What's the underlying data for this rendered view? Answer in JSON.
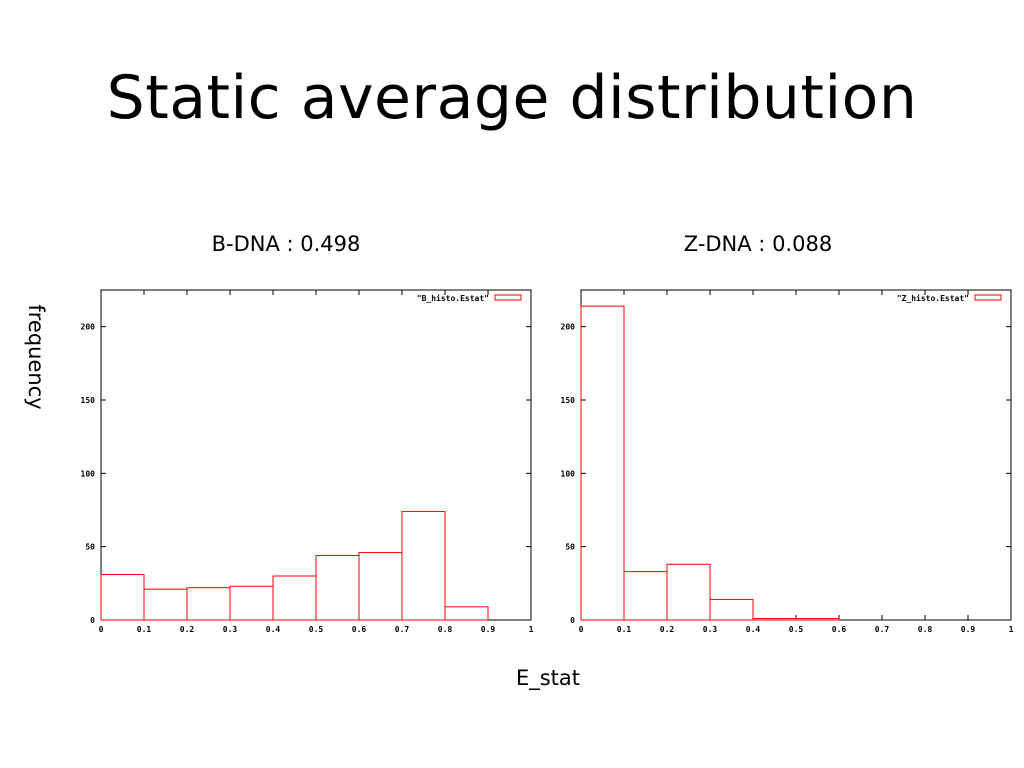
{
  "slide": {
    "title": "Static average distribution",
    "ylabel": "frequency",
    "xlabel": "E_stat"
  },
  "chart_data": [
    {
      "type": "bar",
      "title": "B-DNA : 0.498",
      "legend": "\"B_histo.Estat\"",
      "legend_position": "top-right",
      "color": "#ff0000",
      "xlim": [
        0,
        1
      ],
      "ylim": [
        0,
        225
      ],
      "xticks": [
        "0",
        "0.1",
        "0.2",
        "0.3",
        "0.4",
        "0.5",
        "0.6",
        "0.7",
        "0.8",
        "0.9",
        "1"
      ],
      "yticks": [
        "0",
        "50",
        "100",
        "150",
        "200"
      ],
      "bins": [
        {
          "x0": 0.0,
          "x1": 0.1,
          "value": 31
        },
        {
          "x0": 0.1,
          "x1": 0.2,
          "value": 21
        },
        {
          "x0": 0.2,
          "x1": 0.3,
          "value": 22
        },
        {
          "x0": 0.3,
          "x1": 0.4,
          "value": 23
        },
        {
          "x0": 0.4,
          "x1": 0.5,
          "value": 30
        },
        {
          "x0": 0.5,
          "x1": 0.6,
          "value": 44
        },
        {
          "x0": 0.6,
          "x1": 0.7,
          "value": 46
        },
        {
          "x0": 0.7,
          "x1": 0.8,
          "value": 74
        },
        {
          "x0": 0.8,
          "x1": 0.9,
          "value": 9
        }
      ]
    },
    {
      "type": "bar",
      "title": "Z-DNA : 0.088",
      "legend": "\"Z_histo.Estat\"",
      "legend_position": "top-right",
      "color": "#ff0000",
      "xlim": [
        0,
        1
      ],
      "ylim": [
        0,
        225
      ],
      "xticks": [
        "0",
        "0.1",
        "0.2",
        "0.3",
        "0.4",
        "0.5",
        "0.6",
        "0.7",
        "0.8",
        "0.9",
        "1"
      ],
      "yticks": [
        "0",
        "50",
        "100",
        "150",
        "200"
      ],
      "bins": [
        {
          "x0": 0.0,
          "x1": 0.1,
          "value": 214
        },
        {
          "x0": 0.1,
          "x1": 0.2,
          "value": 33
        },
        {
          "x0": 0.2,
          "x1": 0.3,
          "value": 38
        },
        {
          "x0": 0.3,
          "x1": 0.4,
          "value": 14
        },
        {
          "x0": 0.4,
          "x1": 0.5,
          "value": 1
        },
        {
          "x0": 0.5,
          "x1": 0.6,
          "value": 1
        }
      ]
    }
  ]
}
